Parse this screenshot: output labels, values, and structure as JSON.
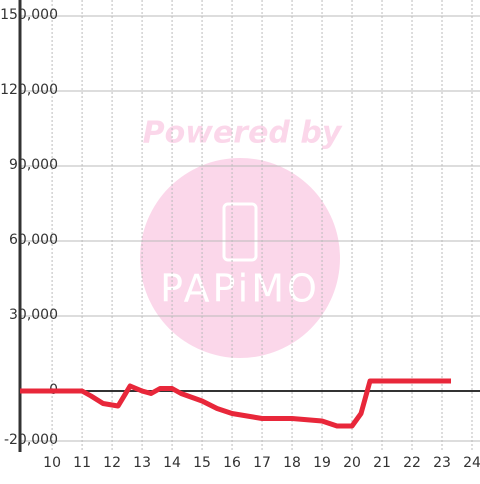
{
  "chart_data": {
    "type": "line",
    "watermark": {
      "text": "Powered by",
      "logo": "PAPiMO"
    },
    "x": [
      8.93,
      11.0,
      11.3,
      11.7,
      12.2,
      12.6,
      13.0,
      13.3,
      13.6,
      14.0,
      14.3,
      15.0,
      15.5,
      16.0,
      16.5,
      17.0,
      18.0,
      19.0,
      19.5,
      20.0,
      20.3,
      20.6,
      23.3
    ],
    "series": [
      {
        "color": "#e8273a",
        "values": [
          0,
          0,
          -2000,
          -5000,
          -6000,
          2000,
          0,
          -1000,
          1000,
          1000,
          -1000,
          -4000,
          -7000,
          -9000,
          -10000,
          -11000,
          -11000,
          -12000,
          -14000,
          -14000,
          -9000,
          4000,
          4000
        ]
      }
    ],
    "xlim": [
      8.93,
      24.3
    ],
    "xticks": [
      10,
      11,
      12,
      13,
      14,
      15,
      16,
      17,
      18,
      19,
      20,
      21,
      22,
      23,
      24
    ],
    "ylim": [
      -20000,
      150000
    ],
    "yticks": [
      {
        "value": -20000,
        "label": "-20,000"
      },
      0,
      {
        "value": 30000,
        "label": "30,000"
      },
      {
        "value": 60000,
        "label": "60,000"
      },
      {
        "value": 90000,
        "label": "90,000"
      },
      {
        "value": 120000,
        "label": "120,000"
      },
      {
        "value": 150000,
        "label": "150,000"
      }
    ],
    "grid": true
  }
}
